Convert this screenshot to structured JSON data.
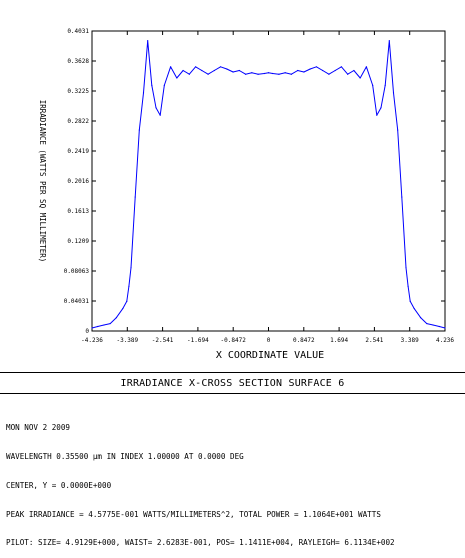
{
  "chart_data": {
    "type": "line",
    "xlabel": "X COORDINATE VALUE",
    "ylabel": "IRRADIANCE (WATTS PER SQ MILLIMETER)",
    "xlim": [
      -4.236,
      4.236
    ],
    "ylim": [
      0,
      0.4031
    ],
    "x_tick_labels": [
      "-4.236",
      "-3.389",
      "-2.541",
      "-1.694",
      "-0.8472",
      "0",
      "0.8472",
      "1.694",
      "2.541",
      "3.389",
      "4.236"
    ],
    "y_tick_labels": [
      "0",
      "0.04031",
      "0.08063",
      "0.1209",
      "0.1613",
      "0.2016",
      "0.2419",
      "0.2822",
      "0.3225",
      "0.3628",
      "0.4031"
    ],
    "grid": false,
    "color": "#0000ff",
    "series": [
      {
        "x": [
          -4.236,
          -4.1,
          -3.95,
          -3.8,
          -3.65,
          -3.5,
          -3.4,
          -3.35,
          -3.3,
          -3.2,
          -3.1,
          -3.0,
          -2.9,
          -2.8,
          -2.7,
          -2.6,
          -2.5,
          -2.35,
          -2.2,
          -2.05,
          -1.9,
          -1.75,
          -1.6,
          -1.45,
          -1.3,
          -1.15,
          -1.0,
          -0.85,
          -0.7,
          -0.55,
          -0.4,
          -0.25,
          -0.1,
          0,
          0.1,
          0.25,
          0.4,
          0.55,
          0.7,
          0.85,
          1.0,
          1.15,
          1.3,
          1.45,
          1.6,
          1.75,
          1.9,
          2.05,
          2.2,
          2.35,
          2.5,
          2.6,
          2.7,
          2.8,
          2.9,
          3.0,
          3.1,
          3.2,
          3.3,
          3.35,
          3.4,
          3.5,
          3.65,
          3.8,
          3.95,
          4.1,
          4.236
        ],
        "y": [
          0.004,
          0.006,
          0.008,
          0.01,
          0.018,
          0.03,
          0.04,
          0.06,
          0.085,
          0.18,
          0.27,
          0.32,
          0.39,
          0.33,
          0.3,
          0.29,
          0.33,
          0.355,
          0.34,
          0.35,
          0.345,
          0.355,
          0.35,
          0.345,
          0.35,
          0.355,
          0.352,
          0.348,
          0.35,
          0.345,
          0.347,
          0.345,
          0.346,
          0.347,
          0.346,
          0.345,
          0.347,
          0.345,
          0.35,
          0.348,
          0.352,
          0.355,
          0.35,
          0.345,
          0.35,
          0.355,
          0.345,
          0.35,
          0.34,
          0.355,
          0.33,
          0.29,
          0.3,
          0.33,
          0.39,
          0.32,
          0.27,
          0.18,
          0.085,
          0.06,
          0.04,
          0.03,
          0.018,
          0.01,
          0.008,
          0.006,
          0.004
        ]
      }
    ]
  },
  "footer": {
    "title": "IRRADIANCE X-CROSS SECTION SURFACE 6",
    "info_lines": [
      "MON NOV 2 2009",
      "WAVELENGTH 0.35500 µm IN INDEX 1.00000 AT 0.0000 DEG",
      "CENTER, Y = 0.0000E+000",
      "PEAK IRRADIANCE = 4.5775E-001 WATTS/MILLIMETERS^2, TOTAL POWER = 1.1064E+001 WATTS",
      "PILOT: SIZE= 4.9129E+000, WAIST= 2.6283E-001, POS= 1.1411E+004, RAYLEIGH= 6.1134E+002"
    ]
  }
}
